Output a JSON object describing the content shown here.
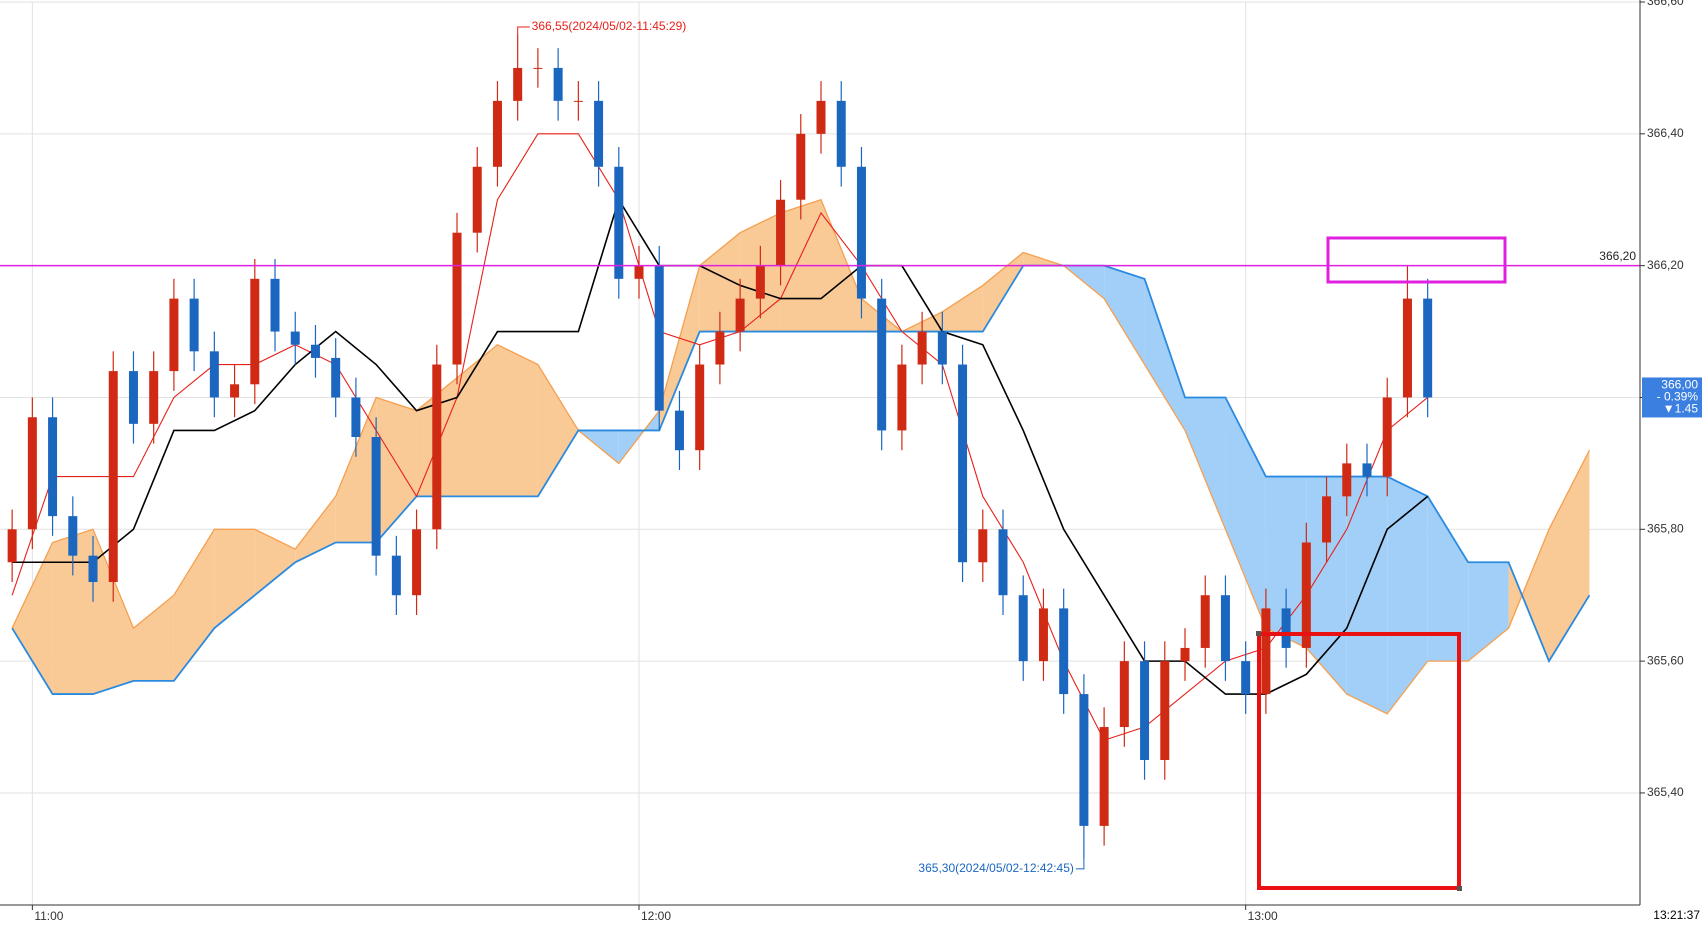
{
  "chart_data": {
    "type": "candlestick",
    "up_color": "#d02a14",
    "down_color": "#1b67c0",
    "x": [
      -2,
      0,
      2,
      4,
      6,
      8,
      10,
      12,
      14,
      16,
      18,
      20,
      22,
      24,
      26,
      28,
      30,
      32,
      34,
      36,
      38,
      40,
      42,
      44,
      46,
      48,
      50,
      52,
      54,
      56,
      58,
      60,
      62,
      64,
      66,
      68,
      70,
      72,
      74,
      76,
      78,
      80,
      82,
      84,
      86,
      88,
      90,
      92,
      94,
      96,
      98,
      100,
      102,
      104,
      106,
      108,
      110,
      112,
      114,
      116,
      118,
      120,
      122,
      124,
      126,
      128,
      130,
      132,
      134,
      136,
      138
    ],
    "open": [
      365.75,
      365.8,
      365.97,
      365.82,
      365.76,
      365.72,
      366.04,
      365.96,
      366.04,
      366.15,
      366.07,
      366.0,
      366.02,
      366.18,
      366.1,
      366.08,
      366.06,
      366.0,
      365.94,
      365.76,
      365.7,
      365.8,
      366.05,
      366.25,
      366.35,
      366.45,
      366.5,
      366.5,
      366.45,
      366.45,
      366.35,
      366.18,
      366.2,
      365.98,
      365.92,
      366.05,
      366.1,
      366.15,
      366.2,
      366.3,
      366.4,
      366.45,
      366.35,
      366.15,
      365.95,
      366.05,
      366.1,
      366.05,
      365.75,
      365.8,
      365.7,
      365.6,
      365.68,
      365.55,
      365.35,
      365.5,
      365.6,
      365.45,
      365.6,
      365.62,
      365.7,
      365.6,
      365.55,
      365.68,
      365.62,
      365.78,
      365.85,
      365.9,
      365.88,
      366.0,
      366.15
    ],
    "high": [
      365.83,
      366.0,
      366.0,
      365.85,
      365.79,
      366.07,
      366.07,
      366.07,
      366.18,
      366.18,
      366.1,
      366.05,
      366.21,
      366.21,
      366.13,
      366.11,
      366.09,
      366.03,
      365.97,
      365.79,
      365.83,
      366.08,
      366.28,
      366.38,
      366.48,
      366.55,
      366.53,
      366.53,
      366.48,
      366.48,
      366.38,
      366.23,
      366.23,
      366.01,
      366.08,
      366.13,
      366.18,
      366.23,
      366.33,
      366.43,
      366.48,
      366.48,
      366.38,
      366.18,
      366.08,
      366.13,
      366.13,
      366.08,
      365.83,
      365.83,
      365.73,
      365.71,
      365.71,
      365.58,
      365.53,
      365.63,
      365.63,
      365.63,
      365.65,
      365.73,
      365.73,
      365.63,
      365.71,
      365.71,
      365.81,
      365.88,
      365.93,
      365.93,
      366.03,
      366.2,
      366.18
    ],
    "low": [
      365.72,
      365.77,
      365.79,
      365.73,
      365.69,
      365.69,
      365.93,
      365.93,
      366.01,
      366.04,
      365.97,
      365.97,
      365.99,
      366.07,
      366.05,
      366.03,
      365.97,
      365.91,
      365.73,
      365.67,
      365.67,
      365.77,
      366.02,
      366.22,
      366.32,
      366.42,
      366.47,
      366.42,
      366.42,
      366.32,
      366.15,
      366.15,
      365.95,
      365.89,
      365.89,
      366.02,
      366.07,
      366.12,
      366.17,
      366.27,
      366.37,
      366.32,
      366.12,
      365.92,
      365.92,
      366.02,
      366.02,
      365.72,
      365.72,
      365.67,
      365.57,
      365.57,
      365.52,
      365.3,
      365.32,
      365.47,
      365.42,
      365.42,
      365.57,
      365.59,
      365.57,
      365.52,
      365.52,
      365.59,
      365.59,
      365.75,
      365.82,
      365.85,
      365.85,
      365.97,
      365.97
    ],
    "close": [
      365.8,
      365.97,
      365.82,
      365.76,
      365.72,
      366.04,
      365.96,
      366.04,
      366.15,
      366.07,
      366.0,
      366.02,
      366.18,
      366.1,
      366.08,
      366.06,
      366.0,
      365.94,
      365.76,
      365.7,
      365.8,
      366.05,
      366.25,
      366.35,
      366.45,
      366.5,
      366.5,
      366.45,
      366.45,
      366.35,
      366.18,
      366.2,
      365.98,
      365.92,
      366.05,
      366.1,
      366.15,
      366.2,
      366.3,
      366.4,
      366.45,
      366.35,
      366.15,
      365.95,
      366.05,
      366.1,
      366.05,
      365.75,
      365.8,
      365.7,
      365.6,
      365.68,
      365.55,
      365.35,
      365.5,
      365.6,
      365.45,
      365.6,
      365.62,
      365.7,
      365.6,
      365.55,
      365.68,
      365.62,
      365.78,
      365.85,
      365.9,
      365.88,
      366.0,
      366.15,
      366.0
    ],
    "cloud": {
      "x": [
        -2,
        2,
        6,
        10,
        14,
        18,
        22,
        26,
        30,
        34,
        38,
        42,
        46,
        50,
        54,
        58,
        62,
        66,
        70,
        74,
        78,
        82,
        86,
        90,
        94,
        98,
        102,
        106,
        110,
        114,
        118,
        122,
        126,
        130,
        134,
        138,
        142,
        146,
        150,
        154
      ],
      "span_a": [
        365.65,
        365.78,
        365.8,
        365.65,
        365.7,
        365.8,
        365.8,
        365.77,
        365.85,
        366.0,
        365.98,
        366.03,
        366.08,
        366.05,
        365.95,
        365.9,
        365.98,
        366.2,
        366.25,
        366.28,
        366.3,
        366.15,
        366.1,
        366.13,
        366.17,
        366.22,
        366.2,
        366.15,
        366.05,
        365.95,
        365.8,
        365.65,
        365.62,
        365.55,
        365.52,
        365.6,
        365.6,
        365.65,
        365.8,
        365.92
      ],
      "span_b": [
        365.65,
        365.55,
        365.55,
        365.57,
        365.57,
        365.65,
        365.7,
        365.75,
        365.78,
        365.78,
        365.85,
        365.85,
        365.85,
        365.85,
        365.95,
        365.95,
        365.95,
        366.1,
        366.1,
        366.1,
        366.1,
        366.1,
        366.1,
        366.1,
        366.1,
        366.2,
        366.2,
        366.2,
        366.18,
        366.0,
        366.0,
        365.88,
        365.88,
        365.88,
        365.88,
        365.85,
        365.75,
        365.75,
        365.6,
        365.7
      ],
      "span_a_color": "#f5a050",
      "span_b_color": "#2a8ae0",
      "up_fill": "#f9c996",
      "down_fill": "#a2cff7"
    },
    "lines": [
      {
        "color": "#e8201a",
        "x": [
          -2,
          2,
          6,
          10,
          14,
          18,
          22,
          26,
          30,
          34,
          38,
          42,
          46,
          50,
          54,
          58,
          62,
          66,
          70,
          74,
          78,
          82,
          86,
          90,
          94,
          98,
          102,
          106,
          110,
          114,
          118,
          122,
          126,
          130,
          134,
          138
        ],
        "values": [
          365.7,
          365.88,
          365.88,
          365.88,
          366.0,
          366.05,
          366.05,
          366.08,
          366.05,
          365.95,
          365.85,
          366.0,
          366.3,
          366.4,
          366.4,
          366.3,
          366.1,
          366.08,
          366.1,
          366.15,
          366.28,
          366.2,
          366.1,
          366.05,
          365.85,
          365.75,
          365.6,
          365.48,
          365.5,
          365.55,
          365.6,
          365.62,
          365.7,
          365.8,
          365.95,
          366.0
        ]
      },
      {
        "color": "#000000",
        "x": [
          -2,
          2,
          6,
          10,
          14,
          18,
          22,
          26,
          30,
          34,
          38,
          42,
          46,
          50,
          54,
          58,
          62,
          66,
          70,
          74,
          78,
          82,
          86,
          90,
          94,
          98,
          102,
          106,
          110,
          114,
          118,
          122,
          126,
          130,
          134,
          138
        ],
        "values": [
          365.75,
          365.75,
          365.75,
          365.8,
          365.95,
          365.95,
          365.98,
          366.05,
          366.1,
          366.05,
          365.98,
          366.0,
          366.1,
          366.1,
          366.1,
          366.3,
          366.2,
          366.2,
          366.17,
          366.15,
          366.15,
          366.2,
          366.2,
          366.1,
          366.08,
          365.95,
          365.8,
          365.7,
          365.6,
          365.6,
          365.55,
          365.55,
          365.58,
          365.65,
          365.8,
          365.85
        ]
      }
    ],
    "hline": {
      "value": 366.2,
      "label": "366,20",
      "color": "#e020e0"
    },
    "annotations": [
      {
        "text": "366,55(2024/05/02-11:45:29)",
        "x": 48,
        "y": 366.55,
        "color": "#e8201a",
        "side": "above"
      },
      {
        "text": "365,30(2024/05/02-12:42:45)",
        "x": 104,
        "y": 365.3,
        "color": "#1b67c0",
        "side": "below"
      }
    ],
    "last": {
      "value": 366.0,
      "label": "366,00",
      "change_pct": "- 0.39%",
      "change": "▼1.45"
    },
    "current_time": "13:21:37",
    "xlim": [
      -3.2,
      159
    ],
    "ylim": [
      365.23,
      366.6
    ],
    "yticks": [
      {
        "value": 365.4,
        "label": "365,40"
      },
      {
        "value": 365.6,
        "label": "365,60"
      },
      {
        "value": 365.8,
        "label": "365,80"
      },
      {
        "value": 366.0,
        "label": "366,00"
      },
      {
        "value": 366.2,
        "label": "366,20"
      },
      {
        "value": 366.4,
        "label": "366,40"
      },
      {
        "value": 366.6,
        "label": "366,60"
      }
    ],
    "xticks": [
      {
        "value": 0,
        "label": "11:00"
      },
      {
        "value": 60,
        "label": "12:00"
      },
      {
        "value": 120,
        "label": "13:00"
      }
    ],
    "grid": true
  }
}
